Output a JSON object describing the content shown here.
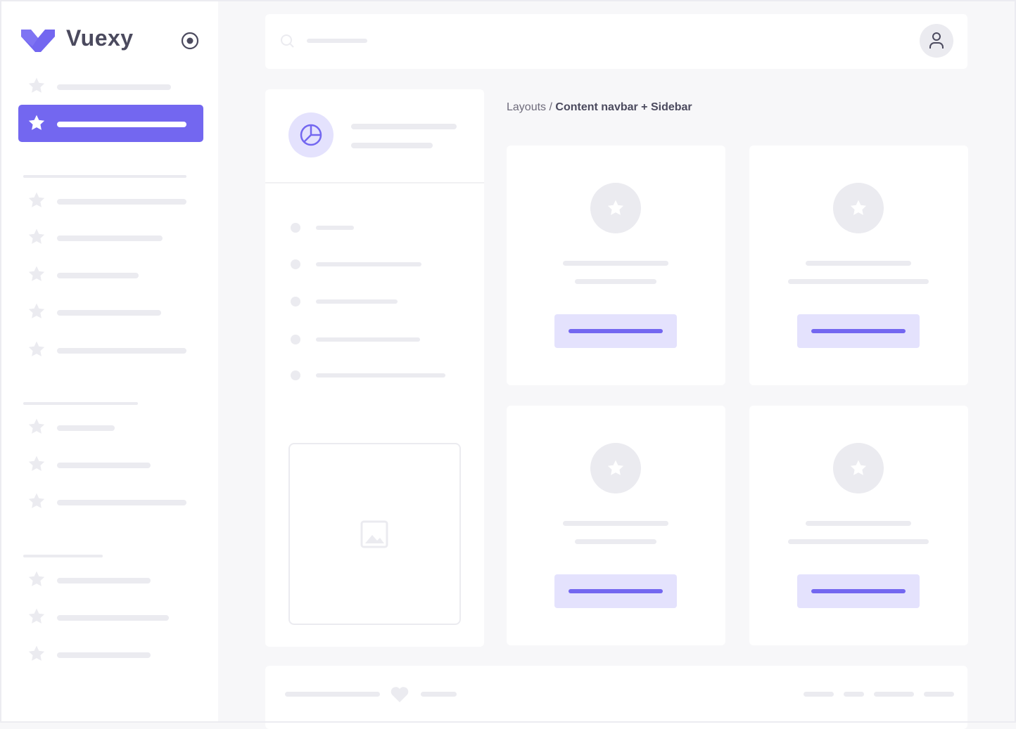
{
  "sidebar": {
    "brand": "Vuexy",
    "brand_color": "#7367f0",
    "active_index": 1
  },
  "breadcrumb": {
    "parent": "Layouts",
    "separator": " / ",
    "current": "Content navbar + Sidebar"
  },
  "colors": {
    "accent": "#7367f0",
    "accent_light": "#e4e2fd",
    "placeholder": "#ebebf0",
    "background": "#f7f7f9"
  },
  "icons": {
    "logo": "vuexy-logo",
    "collapse": "radio-circle-icon",
    "search": "search-icon",
    "user": "user-icon",
    "menu": "star-icon",
    "header": "pie-chart-icon",
    "image": "image-icon",
    "footer": "heart-icon"
  }
}
